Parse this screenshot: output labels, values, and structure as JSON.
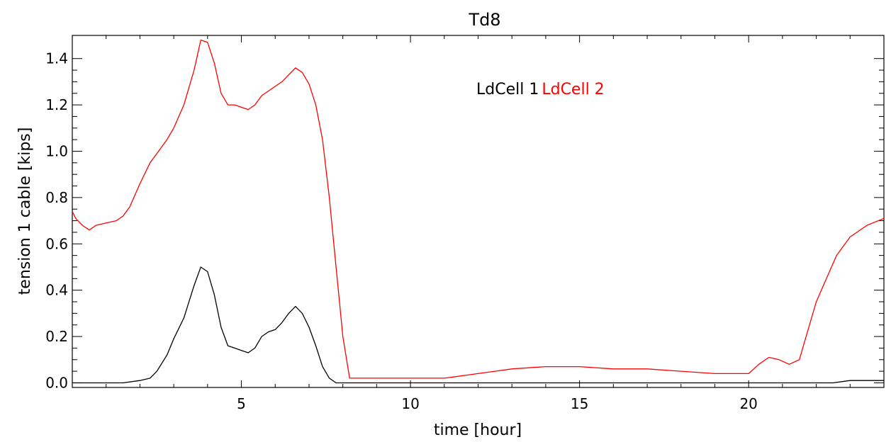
{
  "chart_data": {
    "type": "line",
    "title": "Td8",
    "xlabel": "time [hour]",
    "ylabel": "tension 1 cable [kips]",
    "xlim": [
      0,
      24
    ],
    "ylim": [
      -0.02,
      1.5
    ],
    "xticks": [
      5,
      10,
      15,
      20
    ],
    "xtick_labels": [
      "5",
      "10",
      "15",
      "20"
    ],
    "yticks": [
      0.0,
      0.2,
      0.4,
      0.6,
      0.8,
      1.0,
      1.2,
      1.4
    ],
    "ytick_labels": [
      "0.0",
      "0.2",
      "0.4",
      "0.6",
      "0.8",
      "1.0",
      "1.2",
      "1.4"
    ],
    "grid": false,
    "legend_position": "top-center",
    "series": [
      {
        "name": "LdCell 1",
        "color": "#000000",
        "x": [
          0,
          1.0,
          1.5,
          2.0,
          2.3,
          2.5,
          2.8,
          3.0,
          3.3,
          3.6,
          3.8,
          4.0,
          4.2,
          4.4,
          4.6,
          4.8,
          5.0,
          5.2,
          5.4,
          5.6,
          5.8,
          6.0,
          6.2,
          6.4,
          6.6,
          6.8,
          7.0,
          7.2,
          7.4,
          7.6,
          7.8,
          8.0,
          22.0,
          22.5,
          23.0,
          23.5,
          24.0
        ],
        "y": [
          0.0,
          0.0,
          0.0,
          0.01,
          0.02,
          0.05,
          0.12,
          0.19,
          0.28,
          0.42,
          0.5,
          0.48,
          0.38,
          0.24,
          0.16,
          0.15,
          0.14,
          0.13,
          0.15,
          0.2,
          0.22,
          0.23,
          0.26,
          0.3,
          0.33,
          0.3,
          0.24,
          0.16,
          0.07,
          0.02,
          0.0,
          0.0,
          0.0,
          0.0,
          0.01,
          0.01,
          0.01
        ]
      },
      {
        "name": "LdCell 2",
        "color": "#ff0000",
        "x": [
          0,
          0.1,
          0.3,
          0.5,
          0.7,
          1.0,
          1.3,
          1.5,
          1.7,
          2.0,
          2.3,
          2.5,
          2.8,
          3.0,
          3.3,
          3.6,
          3.8,
          4.0,
          4.2,
          4.4,
          4.6,
          4.8,
          5.0,
          5.2,
          5.4,
          5.6,
          5.8,
          6.0,
          6.2,
          6.4,
          6.6,
          6.8,
          7.0,
          7.2,
          7.4,
          7.6,
          7.8,
          8.0,
          8.2,
          8.4,
          9.0,
          10.0,
          11.0,
          12.0,
          12.5,
          13.0,
          14.0,
          15.0,
          16.0,
          17.0,
          18.0,
          19.0,
          20.0,
          20.3,
          20.6,
          20.9,
          21.2,
          21.5,
          21.8,
          22.0,
          22.3,
          22.6,
          23.0,
          23.5,
          24.0
        ],
        "y": [
          0.74,
          0.71,
          0.68,
          0.66,
          0.68,
          0.69,
          0.7,
          0.72,
          0.76,
          0.86,
          0.95,
          0.99,
          1.05,
          1.1,
          1.2,
          1.35,
          1.48,
          1.47,
          1.38,
          1.25,
          1.2,
          1.2,
          1.19,
          1.18,
          1.2,
          1.24,
          1.26,
          1.28,
          1.3,
          1.33,
          1.36,
          1.34,
          1.29,
          1.2,
          1.05,
          0.8,
          0.5,
          0.2,
          0.02,
          0.02,
          0.02,
          0.02,
          0.02,
          0.04,
          0.05,
          0.06,
          0.07,
          0.07,
          0.06,
          0.06,
          0.05,
          0.04,
          0.04,
          0.08,
          0.11,
          0.1,
          0.08,
          0.1,
          0.25,
          0.35,
          0.45,
          0.55,
          0.63,
          0.68,
          0.71
        ]
      }
    ]
  }
}
